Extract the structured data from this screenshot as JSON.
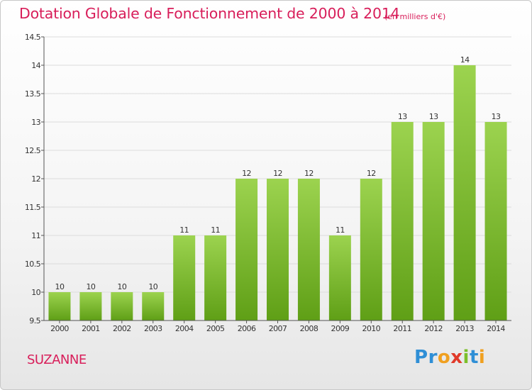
{
  "header": {
    "title": "Dotation Globale de Fonctionnement de 2000 à 2014",
    "subtitle": "(en milliers d'€)"
  },
  "footer": {
    "commune": "SUZANNE",
    "logo_letters": [
      {
        "ch": "P",
        "color": "#2f8fd6"
      },
      {
        "ch": "r",
        "color": "#2f8fd6"
      },
      {
        "ch": "o",
        "color": "#f0a020"
      },
      {
        "ch": "x",
        "color": "#e03a2a"
      },
      {
        "ch": "i",
        "color": "#7cbf2a"
      },
      {
        "ch": "t",
        "color": "#2f8fd6"
      },
      {
        "ch": "i",
        "color": "#f0a020"
      }
    ]
  },
  "colors": {
    "accent": "#d81e5a",
    "bar_top": "#9cd34f",
    "bar_bottom": "#5f9f16",
    "grid": "#dcdcdc",
    "axis": "#555555",
    "text": "#333333"
  },
  "chart_data": {
    "type": "bar",
    "title": "Dotation Globale de Fonctionnement de 2000 à 2014",
    "categories": [
      "2000",
      "2001",
      "2002",
      "2003",
      "2004",
      "2005",
      "2006",
      "2007",
      "2008",
      "2009",
      "2010",
      "2011",
      "2012",
      "2013",
      "2014"
    ],
    "values": [
      10,
      10,
      10,
      10,
      11,
      11,
      12,
      12,
      12,
      11,
      12,
      13,
      13,
      14,
      13
    ],
    "ylim": [
      9.5,
      14.5
    ],
    "yticks": [
      "9.5",
      "10",
      "10.5",
      "11",
      "11.5",
      "12",
      "12.5",
      "13",
      "13.5",
      "14",
      "14.5"
    ],
    "xlabel": "",
    "ylabel": "",
    "grid": true,
    "data_labels": true
  }
}
